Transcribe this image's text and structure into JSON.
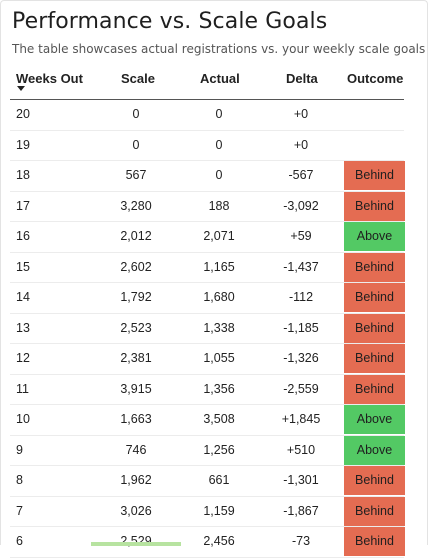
{
  "header": {
    "title": "Performance vs. Scale Goals",
    "subtitle": "The table showcases actual registrations vs. your weekly scale goals"
  },
  "table": {
    "columns": [
      "Weeks Out",
      "Scale",
      "Actual",
      "Delta",
      "Outcome"
    ],
    "rows": [
      {
        "week": "20",
        "scale": "0",
        "actual": "0",
        "delta": "+0",
        "outcome": ""
      },
      {
        "week": "19",
        "scale": "0",
        "actual": "0",
        "delta": "+0",
        "outcome": ""
      },
      {
        "week": "18",
        "scale": "567",
        "actual": "0",
        "delta": "-567",
        "outcome": "Behind"
      },
      {
        "week": "17",
        "scale": "3,280",
        "actual": "188",
        "delta": "-3,092",
        "outcome": "Behind"
      },
      {
        "week": "16",
        "scale": "2,012",
        "actual": "2,071",
        "delta": "+59",
        "outcome": "Above"
      },
      {
        "week": "15",
        "scale": "2,602",
        "actual": "1,165",
        "delta": "-1,437",
        "outcome": "Behind"
      },
      {
        "week": "14",
        "scale": "1,792",
        "actual": "1,680",
        "delta": "-112",
        "outcome": "Behind"
      },
      {
        "week": "13",
        "scale": "2,523",
        "actual": "1,338",
        "delta": "-1,185",
        "outcome": "Behind"
      },
      {
        "week": "12",
        "scale": "2,381",
        "actual": "1,055",
        "delta": "-1,326",
        "outcome": "Behind"
      },
      {
        "week": "11",
        "scale": "3,915",
        "actual": "1,356",
        "delta": "-2,559",
        "outcome": "Behind"
      },
      {
        "week": "10",
        "scale": "1,663",
        "actual": "3,508",
        "delta": "+1,845",
        "outcome": "Above"
      },
      {
        "week": "9",
        "scale": "746",
        "actual": "1,256",
        "delta": "+510",
        "outcome": "Above"
      },
      {
        "week": "8",
        "scale": "1,962",
        "actual": "661",
        "delta": "-1,301",
        "outcome": "Behind"
      },
      {
        "week": "7",
        "scale": "3,026",
        "actual": "1,159",
        "delta": "-1,867",
        "outcome": "Behind"
      },
      {
        "week": "6",
        "scale": "2,529",
        "actual": "2,456",
        "delta": "-73",
        "outcome": "Behind"
      }
    ]
  },
  "icons": {
    "sort": "sort-descending-icon"
  },
  "colors": {
    "behind": "#e46c52",
    "above": "#53c964",
    "header_border": "#555555"
  }
}
